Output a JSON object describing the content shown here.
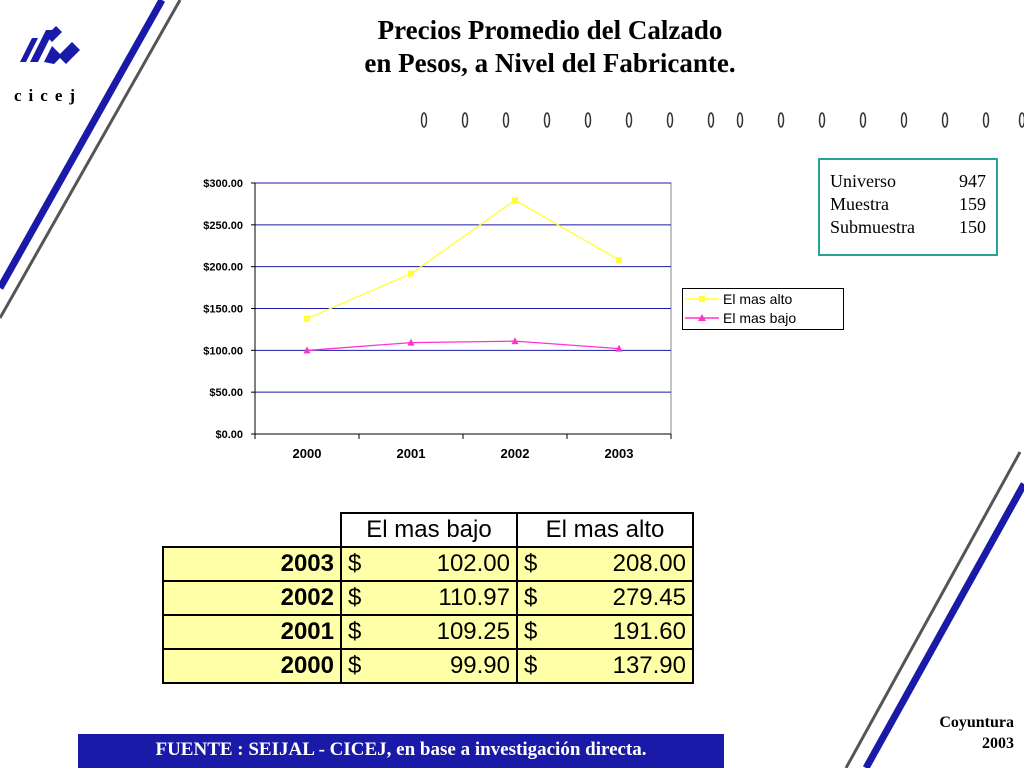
{
  "logo": {
    "text": "cicej"
  },
  "title": {
    "line1": "Precios Promedio del Calzado",
    "line2": "en Pesos, a Nivel del Fabricante."
  },
  "info_box": {
    "rows": [
      {
        "label": "Universo",
        "value": "947"
      },
      {
        "label": "Muestra",
        "value": "159"
      },
      {
        "label": "Submuestra",
        "value": "150"
      }
    ]
  },
  "chart_data": {
    "type": "line",
    "categories": [
      "2000",
      "2001",
      "2002",
      "2003"
    ],
    "series": [
      {
        "name": "El mas alto",
        "values": [
          137.9,
          191.6,
          279.45,
          208.0
        ],
        "color": "#ffff33",
        "marker": "square"
      },
      {
        "name": "El mas bajo",
        "values": [
          99.9,
          109.25,
          110.97,
          102.0
        ],
        "color": "#ff33cc",
        "marker": "triangle"
      }
    ],
    "ylim": [
      0,
      300
    ],
    "yticks": [
      0,
      50,
      100,
      150,
      200,
      250,
      300
    ],
    "ytick_labels": [
      "$0.00",
      "$50.00",
      "$100.00",
      "$150.00",
      "$200.00",
      "$250.00",
      "$300.00"
    ],
    "grid": true,
    "gridline_color": "#1a1aa8",
    "legend_position": "right"
  },
  "table": {
    "headers": [
      "El mas bajo",
      "El mas alto"
    ],
    "rows": [
      {
        "year": "2003",
        "bajo_sym": "$",
        "bajo": "102.00",
        "alto_sym": "$",
        "alto": "208.00"
      },
      {
        "year": "2002",
        "bajo_sym": "$",
        "bajo": "110.97",
        "alto_sym": "$",
        "alto": "279.45"
      },
      {
        "year": "2001",
        "bajo_sym": "$",
        "bajo": "109.25",
        "alto_sym": "$",
        "alto": "191.60"
      },
      {
        "year": "2000",
        "bajo_sym": "$",
        "bajo": "99.90",
        "alto_sym": "$",
        "alto": "137.90"
      }
    ]
  },
  "source": "FUENTE :  SEIJAL - CICEJ,  en base a investigación directa.",
  "footer": {
    "line1": "Coyuntura",
    "line2": "2003"
  },
  "colors": {
    "accent_blue": "#1a1aa8",
    "table_fill": "#ffffa8",
    "box_border": "#2aa39a"
  }
}
